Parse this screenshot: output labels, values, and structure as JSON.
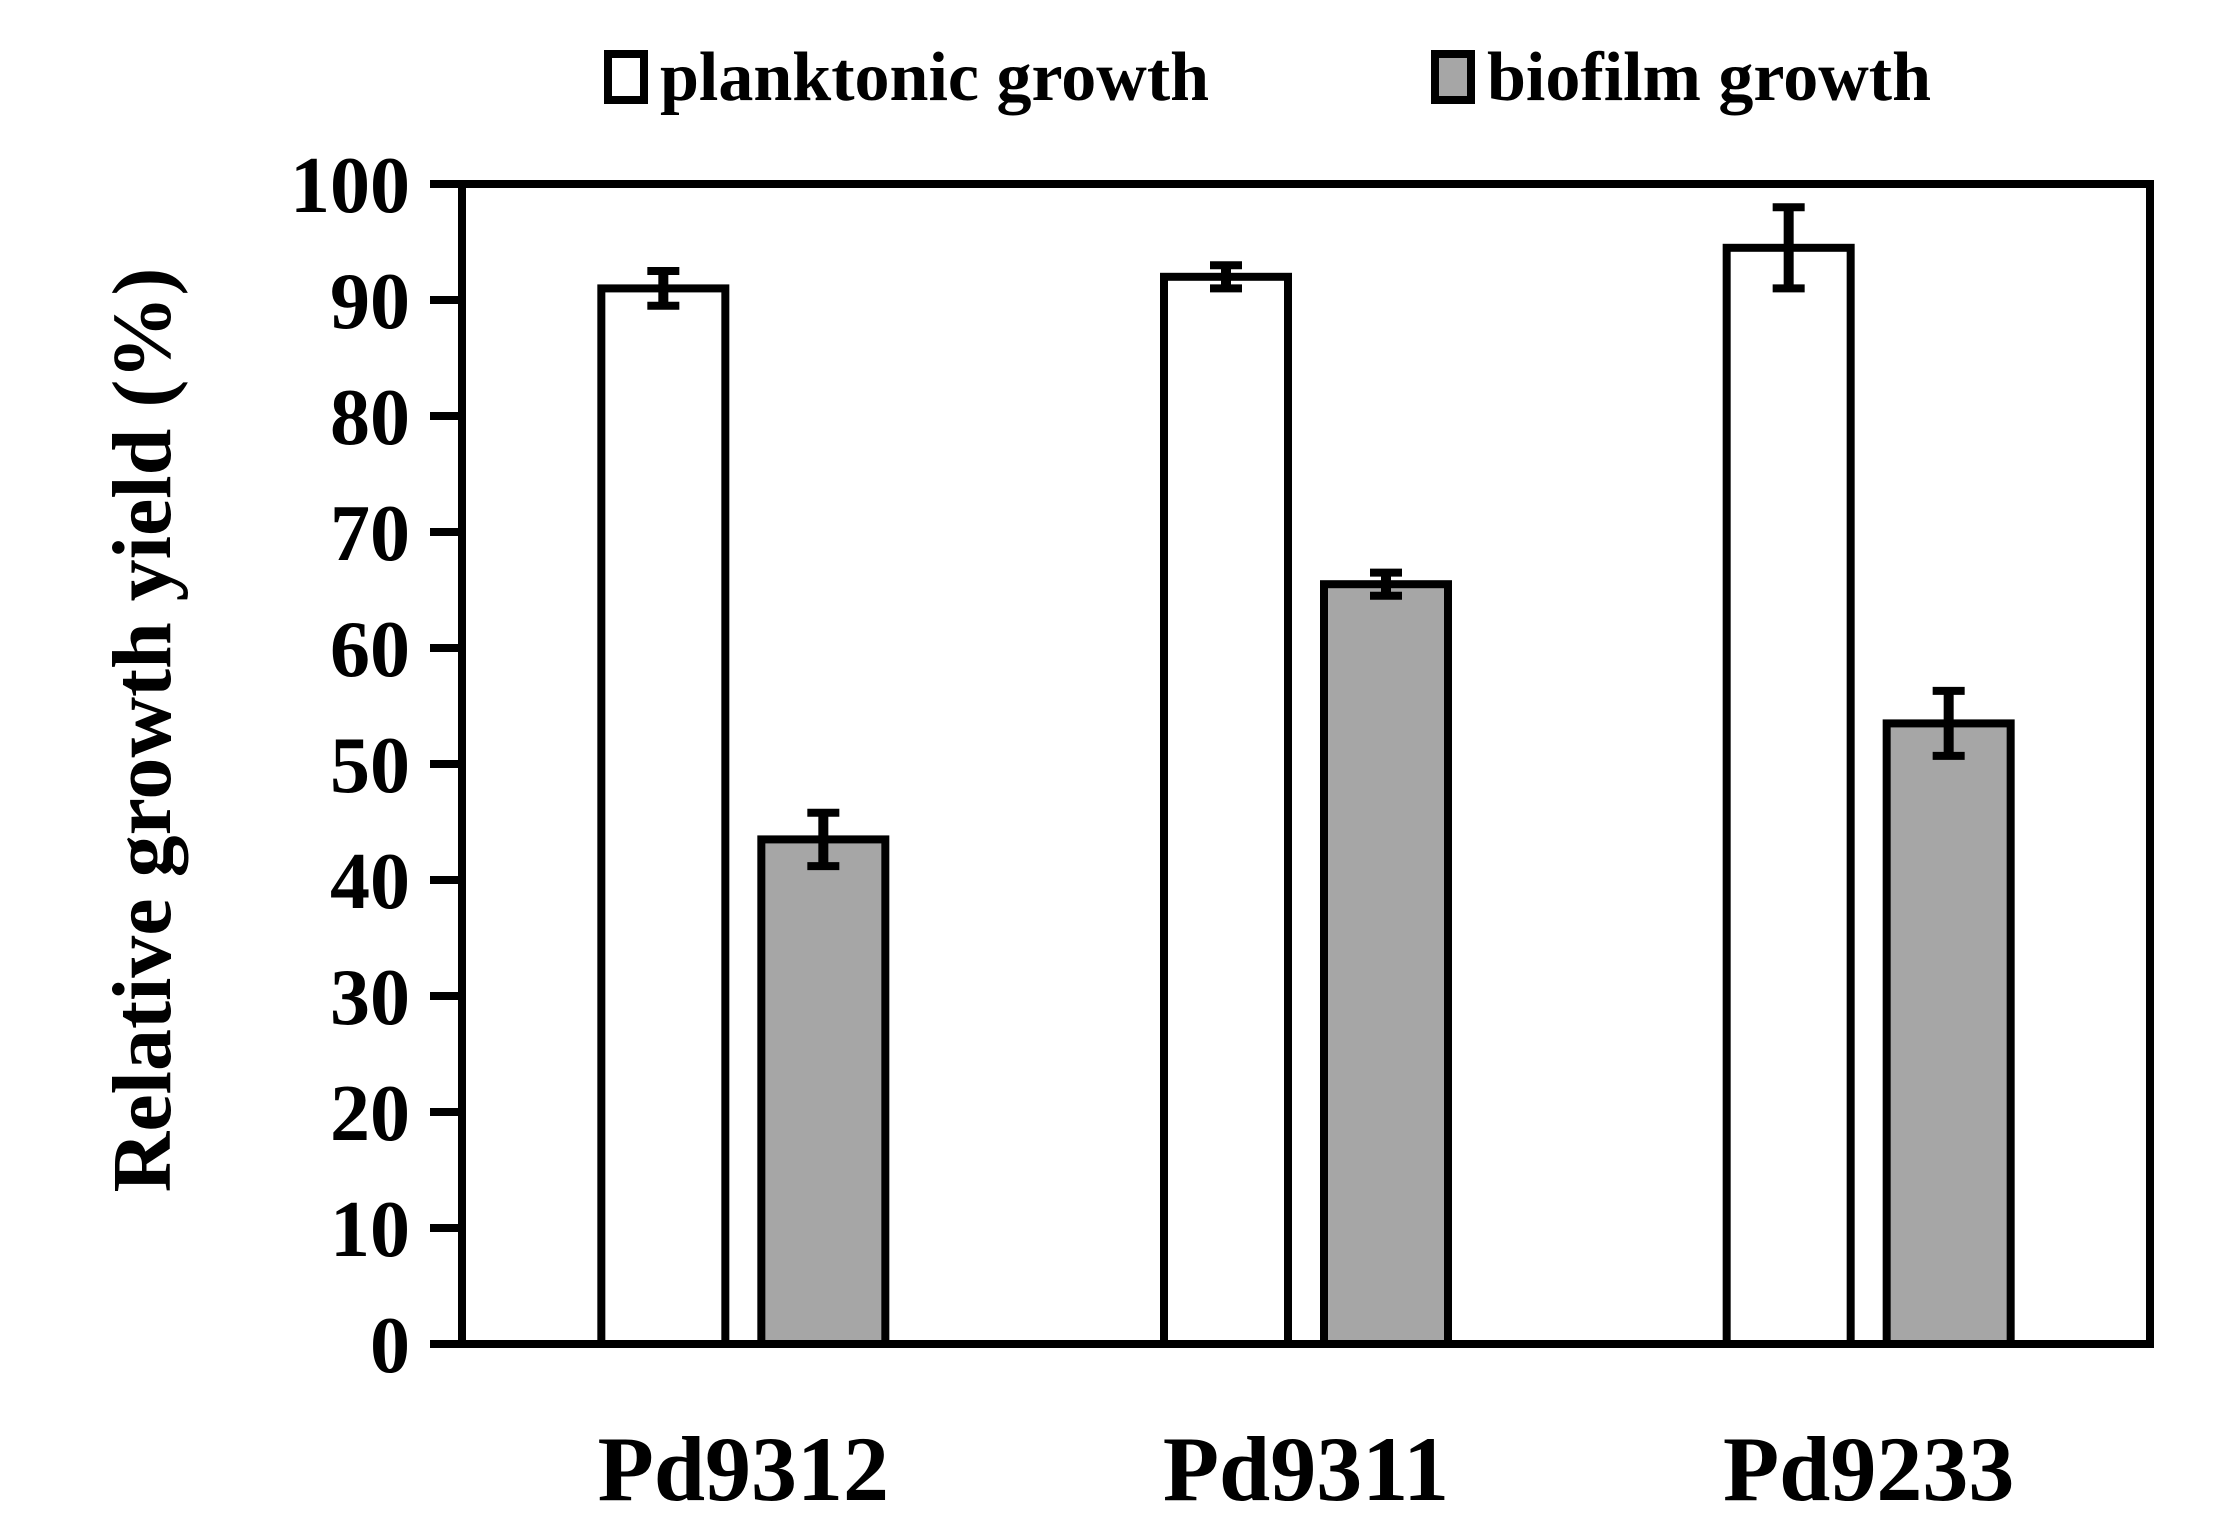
{
  "chart_data": {
    "type": "bar",
    "title": "",
    "xlabel": "",
    "ylabel": "Relative growth yield (%)",
    "ylim": [
      0,
      100
    ],
    "yticks": [
      0,
      10,
      20,
      30,
      40,
      50,
      60,
      70,
      80,
      90,
      100
    ],
    "categories": [
      "Pd9312",
      "Pd9311",
      "Pd9233"
    ],
    "series": [
      {
        "name": "planktonic growth",
        "color": "#ffffff",
        "values": [
          91,
          92,
          94.5
        ],
        "errors": [
          1.5,
          1.0,
          3.5
        ]
      },
      {
        "name": "biofilm growth",
        "color": "#a6a6a6",
        "values": [
          43.5,
          65.5,
          53.5
        ],
        "errors": [
          2.3,
          1.0,
          2.8
        ]
      }
    ],
    "legend_position": "top-center",
    "grid": false
  }
}
